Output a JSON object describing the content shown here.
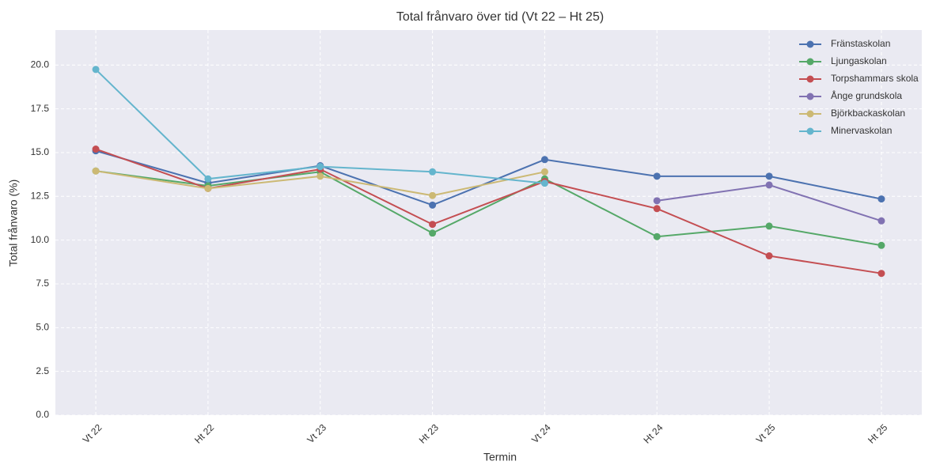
{
  "chart_data": {
    "type": "line",
    "title": "Total frånvaro över tid (Vt 22 – Ht 25)",
    "xlabel": "Termin",
    "ylabel": "Total frånvaro (%)",
    "categories": [
      "Vt 22",
      "Ht 22",
      "Vt 23",
      "Ht 23",
      "Vt 24",
      "Ht 24",
      "Vt 25",
      "Ht 25"
    ],
    "series": [
      {
        "name": "Fränstaskolan",
        "color": "#4c72b0",
        "values": [
          15.1,
          13.26,
          14.25,
          12.0,
          14.6,
          13.65,
          13.65,
          12.35
        ]
      },
      {
        "name": "Ljungaskolan",
        "color": "#55a868",
        "values": [
          13.95,
          13.1,
          13.9,
          10.4,
          13.5,
          10.2,
          10.8,
          9.7
        ]
      },
      {
        "name": "Torpshammars skola",
        "color": "#c44e52",
        "values": [
          15.2,
          12.95,
          14.05,
          10.9,
          13.35,
          11.8,
          9.1,
          8.1
        ]
      },
      {
        "name": "Ånge grundskola",
        "color": "#8172b2",
        "values": [
          null,
          null,
          null,
          null,
          null,
          12.25,
          13.15,
          11.1
        ]
      },
      {
        "name": "Björkbackaskolan",
        "color": "#ccb974",
        "values": [
          13.95,
          12.95,
          13.65,
          12.55,
          13.9,
          null,
          null,
          null
        ]
      },
      {
        "name": "Minervaskolan",
        "color": "#64b5cd",
        "values": [
          19.75,
          13.5,
          14.2,
          13.9,
          13.25,
          null,
          null,
          null
        ]
      }
    ],
    "ylim": [
      0,
      22
    ],
    "yticks": [
      {
        "value": 0,
        "label": "0.0"
      },
      {
        "value": 2.5,
        "label": "2.5"
      },
      {
        "value": 5,
        "label": "5.0"
      },
      {
        "value": 7.5,
        "label": "7.5"
      },
      {
        "value": 10,
        "label": "10.0"
      },
      {
        "value": 12.5,
        "label": "12.5"
      },
      {
        "value": 15,
        "label": "15.0"
      },
      {
        "value": 17.5,
        "label": "17.5"
      },
      {
        "value": 20,
        "label": "20.0"
      }
    ],
    "grid": true,
    "legend": "upper right"
  }
}
